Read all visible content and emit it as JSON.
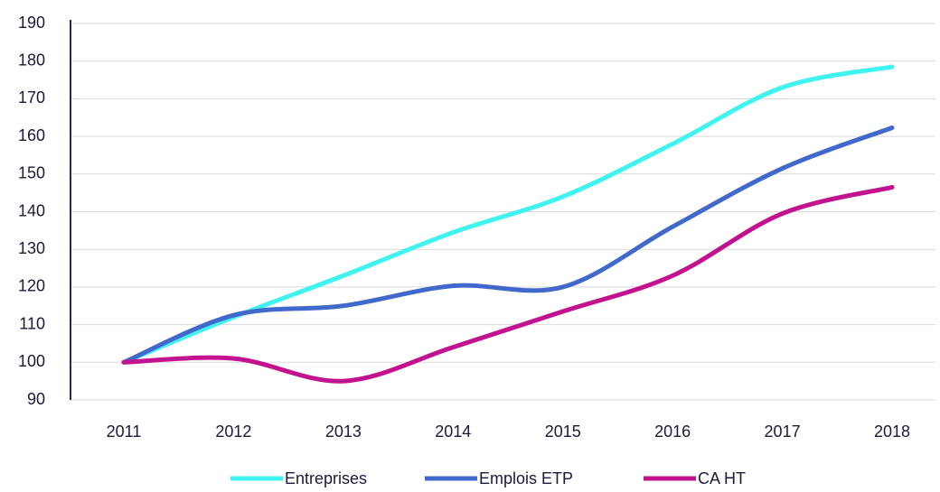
{
  "chart_data": {
    "type": "line",
    "categories": [
      "2011",
      "2012",
      "2013",
      "2014",
      "2015",
      "2016",
      "2017",
      "2018"
    ],
    "series": [
      {
        "name": "Entreprises",
        "color": "#3ff3f0",
        "values": [
          100,
          112,
          123,
          134.5,
          144,
          158,
          173,
          178.5
        ]
      },
      {
        "name": "Emplois ETP",
        "color": "#4169cc",
        "values": [
          100,
          112.5,
          115,
          120.3,
          120,
          136,
          151.5,
          162.3
        ]
      },
      {
        "name": "CA HT",
        "color": "#c2128f",
        "values": [
          100,
          101,
          95,
          104,
          113.5,
          123,
          139.5,
          146.5
        ]
      }
    ],
    "ylim": [
      90,
      190
    ],
    "yticks": [
      90,
      100,
      110,
      120,
      130,
      140,
      150,
      160,
      170,
      180,
      190
    ],
    "grid": true,
    "legend": "bottom"
  }
}
